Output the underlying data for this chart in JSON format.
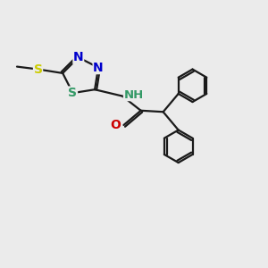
{
  "bg_color": "#ebebeb",
  "bond_color": "#1a1a1a",
  "N_color": "#0000cc",
  "S_color": "#cccc00",
  "S2_color": "#339966",
  "O_color": "#cc0000",
  "H_color": "#339966",
  "line_width": 1.6,
  "fig_size": [
    3.0,
    3.0
  ],
  "dpi": 100,
  "xlim": [
    0,
    10
  ],
  "ylim": [
    0,
    10
  ]
}
